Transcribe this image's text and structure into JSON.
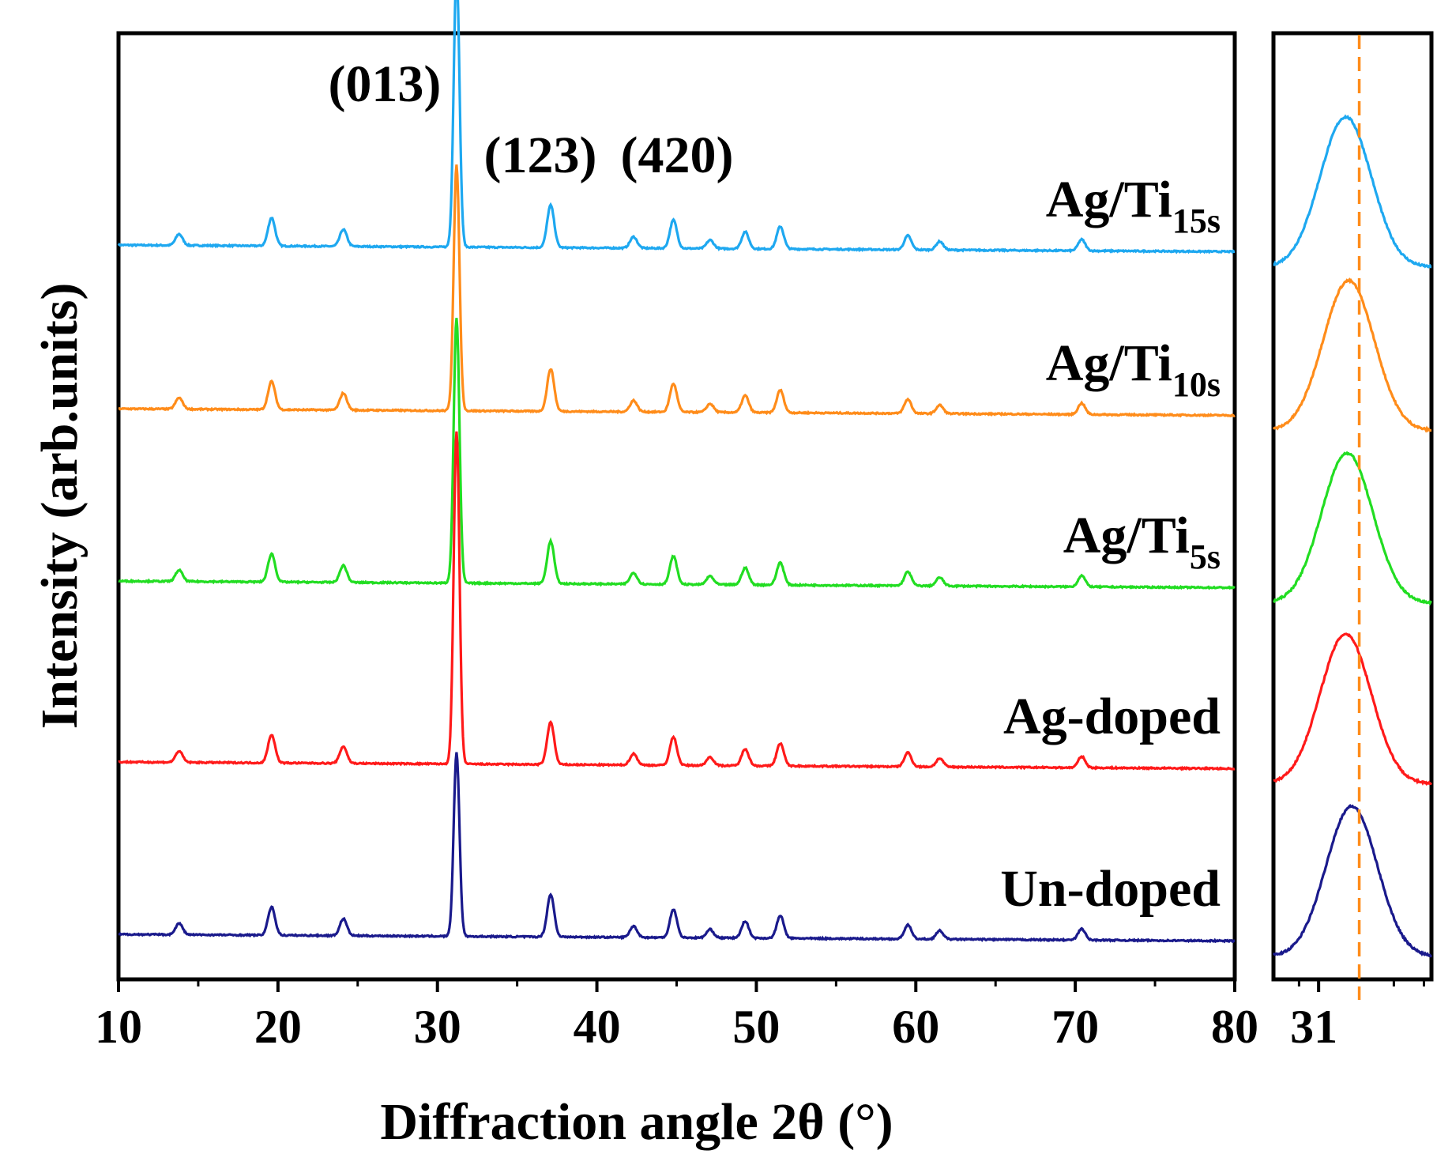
{
  "chart_data": {
    "type": "line",
    "title": "",
    "xlabel": "Diffraction angle 2θ (°)",
    "ylabel": "Intensity (arb.units)",
    "xlim": [
      10,
      80
    ],
    "x_ticks": [
      10,
      20,
      30,
      40,
      50,
      60,
      70,
      80
    ],
    "x_tick_labels": [
      "10",
      "20",
      "30",
      "40",
      "50",
      "60",
      "70",
      "80"
    ],
    "y_ticks": [],
    "grid": false,
    "peak_positions_2theta": [
      13.8,
      19.6,
      24.1,
      31.2,
      37.1,
      42.3,
      44.8,
      47.1,
      49.3,
      51.5,
      59.5,
      61.5,
      70.4
    ],
    "peak_relative_heights": [
      0.04,
      0.1,
      0.06,
      1.0,
      0.15,
      0.04,
      0.1,
      0.03,
      0.06,
      0.08,
      0.05,
      0.03,
      0.04
    ],
    "peak_labels": [
      {
        "text": "(013)",
        "two_theta": 31.2
      },
      {
        "text": "(123)",
        "two_theta": 37.1
      },
      {
        "text": "(420)",
        "two_theta": 44.8
      }
    ],
    "series": [
      {
        "name": "Ag/Ti15s",
        "base": "Ag/Ti",
        "sub": "15s",
        "color": "#1ea8f0",
        "offset": 4.0,
        "main_peak_height": 0.98,
        "inset_peak_2theta": 31.18
      },
      {
        "name": "Ag/Ti10s",
        "base": "Ag/Ti",
        "sub": "10s",
        "color": "#ff8c1a",
        "offset": 3.05,
        "main_peak_height": 0.87,
        "inset_peak_2theta": 31.2
      },
      {
        "name": "Ag/Ti5s",
        "base": "Ag/Ti",
        "sub": "5s",
        "color": "#22dd22",
        "offset": 2.05,
        "main_peak_height": 0.94,
        "inset_peak_2theta": 31.19
      },
      {
        "name": "Ag-doped",
        "base": "Ag-doped",
        "sub": "",
        "color": "#ff1a1a",
        "offset": 1.0,
        "main_peak_height": 1.18,
        "inset_peak_2theta": 31.18
      },
      {
        "name": "Un-doped",
        "base": "Un-doped",
        "sub": "",
        "color": "#1a1a8c",
        "offset": 0.0,
        "main_peak_height": 0.65,
        "inset_peak_2theta": 31.22
      }
    ],
    "inset": {
      "type": "line",
      "xlim": [
        30.7,
        31.75
      ],
      "x_ticks": [
        31
      ],
      "x_tick_labels": [
        "31"
      ],
      "reference_line_2theta": 31.27,
      "reference_line_color": "#ff8c1a",
      "reference_line_style": "dashed"
    }
  }
}
